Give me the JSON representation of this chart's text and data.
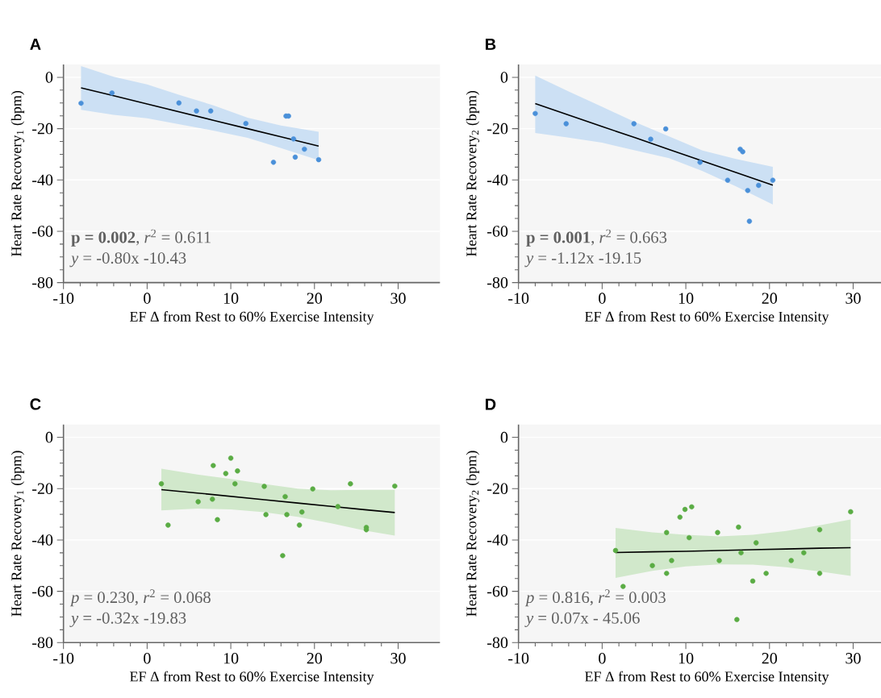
{
  "chart_data": [
    {
      "type": "scatter",
      "title": "A",
      "xlabel": "EF Δ from Rest to 60% Exercise Intensity",
      "ylabel": "Heart Rate Recovery$_{1}$ (bpm)",
      "xlim": [
        -10,
        35
      ],
      "ylim": [
        -80,
        5
      ],
      "xticks": [
        -10,
        0,
        10,
        20,
        30
      ],
      "yticks": [
        -80,
        -60,
        -40,
        -20,
        0
      ],
      "grid": "y",
      "annotations": [
        "**p = 0.002**, *r*$^{2}$ = 0.611",
        "*y* = -0.80x -10.43"
      ],
      "series": [
        {
          "marker": "circle",
          "color": "#4a90d9",
          "x": [
            -7.9,
            -4.2,
            3.8,
            5.9,
            7.6,
            11.8,
            15.1,
            16.6,
            16.9,
            17.5,
            17.7,
            18.8,
            20.5
          ],
          "values": [
            -10.1,
            -6.1,
            -10,
            -13.1,
            -13.1,
            -18,
            -33.1,
            -15.1,
            -15.1,
            -24,
            -31.1,
            -28,
            -32.1
          ]
        },
        {
          "type": "line",
          "marker": "none",
          "color": "#000000",
          "x": [
            -7.9,
            -4,
            0,
            4,
            8,
            12,
            16,
            20.5
          ],
          "values": [
            -4.1,
            -7.2,
            -10.4,
            -13.6,
            -16.8,
            -20.0,
            -23.2,
            -26.8
          ],
          "upper": [
            4.4,
            0.2,
            -2.8,
            -7,
            -11,
            -15.7,
            -18.8,
            -21.2
          ],
          "lower": [
            -12.7,
            -14.6,
            -16,
            -18.4,
            -20.8,
            -23.6,
            -27.6,
            -32.3
          ]
        }
      ]
    },
    {
      "type": "scatter",
      "title": "B",
      "xlabel": "EF Δ from Rest to 60% Exercise Intensity",
      "ylabel": "Heart Rate Recovery$_{2}$ (bpm)",
      "xlim": [
        -10,
        35
      ],
      "ylim": [
        -80,
        5
      ],
      "xticks": [
        -10,
        0,
        10,
        20,
        30
      ],
      "yticks": [
        -80,
        -60,
        -40,
        -20,
        0
      ],
      "grid": "y",
      "annotations": [
        "**p = 0.001**, *r*$^{2}$ = 0.663",
        "*y* = -1.12x -19.15"
      ],
      "series": [
        {
          "marker": "circle",
          "color": "#4a90d9",
          "x": [
            -8.0,
            -4.3,
            3.8,
            5.8,
            7.6,
            11.7,
            15.0,
            16.5,
            16.8,
            17.4,
            17.6,
            18.7,
            20.4
          ],
          "values": [
            -14.1,
            -18.1,
            -18.1,
            -24.1,
            -20.1,
            -33.1,
            -40.1,
            -28,
            -29,
            -44.1,
            -56.1,
            -42.1,
            -40.1
          ]
        },
        {
          "type": "line",
          "marker": "none",
          "color": "#000000",
          "x": [
            -8.0,
            -4,
            0,
            4,
            8,
            12,
            16,
            20.4
          ],
          "values": [
            -10.2,
            -14.7,
            -19.2,
            -23.6,
            -28.1,
            -32.6,
            -37.1,
            -42.0
          ],
          "upper": [
            0.7,
            -5.5,
            -11.5,
            -17.5,
            -23,
            -28.5,
            -31.8,
            -34.9
          ],
          "lower": [
            -21.7,
            -23.5,
            -25.5,
            -28.5,
            -31.5,
            -36.5,
            -42.5,
            -49.6
          ]
        }
      ]
    },
    {
      "type": "scatter",
      "title": "C",
      "xlabel": "EF Δ from Rest to 60% Exercise Intensity",
      "ylabel": "Heart Rate Recovery$_{1}$ (bpm)",
      "xlim": [
        -10,
        35
      ],
      "ylim": [
        -80,
        5
      ],
      "xticks": [
        -10,
        0,
        10,
        20,
        30
      ],
      "yticks": [
        -80,
        -60,
        -40,
        -20,
        0
      ],
      "grid": "y",
      "annotations": [
        "*p* = 0.230, *r*$^{2}$ = 0.068",
        "*y* = -0.32x -19.83"
      ],
      "series": [
        {
          "marker": "circle",
          "color": "#5aac44",
          "x": [
            1.7,
            2.5,
            6.1,
            7.9,
            7.8,
            8.4,
            9.4,
            10.0,
            10.8,
            10.5,
            14.0,
            14.2,
            16.2,
            16.5,
            16.7,
            18.2,
            18.5,
            19.8,
            22.8,
            24.3,
            26.2,
            26.2,
            29.6
          ],
          "values": [
            -18.1,
            -34.2,
            -25.1,
            -11,
            -24.1,
            -32.1,
            -14.1,
            -8.1,
            -13.1,
            -18.1,
            -19.1,
            -30.1,
            -46.1,
            -23.1,
            -30.1,
            -34.2,
            -29.1,
            -20.1,
            -27,
            -18.1,
            -35.1,
            -36.0,
            -19
          ]
        },
        {
          "type": "line",
          "marker": "none",
          "color": "#000000",
          "x": [
            1.7,
            6,
            10,
            14,
            18,
            22,
            26,
            29.6
          ],
          "values": [
            -20.4,
            -21.7,
            -23.0,
            -24.3,
            -25.6,
            -26.9,
            -28.2,
            -29.3
          ],
          "upper": [
            -12.2,
            -14.5,
            -16.2,
            -18.2,
            -20.0,
            -20.6,
            -20.5,
            -20.5
          ],
          "lower": [
            -28.5,
            -27.8,
            -28.1,
            -29.2,
            -31.0,
            -33.5,
            -36.3,
            -38.3
          ]
        }
      ]
    },
    {
      "type": "scatter",
      "title": "D",
      "xlabel": "EF Δ from Rest to 60% Exercise Intensity",
      "ylabel": "Heart Rate Recovery$_{2}$ (bpm)",
      "xlim": [
        -10,
        35
      ],
      "ylim": [
        -80,
        5
      ],
      "xticks": [
        -10,
        0,
        10,
        20,
        30
      ],
      "yticks": [
        -80,
        -60,
        -40,
        -20,
        0
      ],
      "grid": "y",
      "annotations": [
        "*p* = 0.816, *r*$^{2}$ = 0.003",
        "*y* = 0.07x - 45.06"
      ],
      "series": [
        {
          "marker": "circle",
          "color": "#5aac44",
          "x": [
            1.6,
            2.5,
            6.0,
            7.7,
            7.7,
            8.3,
            9.3,
            9.9,
            10.7,
            10.4,
            13.8,
            14.0,
            16.1,
            16.3,
            16.6,
            18.0,
            18.4,
            19.6,
            22.6,
            24.1,
            26.0,
            26.0,
            29.7
          ],
          "values": [
            -44.1,
            -58.1,
            -50,
            -37.1,
            -53,
            -48,
            -31.1,
            -28.1,
            -27.1,
            -39.1,
            -37.1,
            -48,
            -71,
            -35,
            -45,
            -56,
            -41.1,
            -53,
            -48,
            -45,
            -36.0,
            -53,
            -29
          ]
        },
        {
          "type": "line",
          "marker": "none",
          "color": "#000000",
          "x": [
            1.6,
            6,
            10,
            14,
            18,
            22,
            26,
            29.7
          ],
          "values": [
            -44.9,
            -44.6,
            -44.4,
            -44.1,
            -43.8,
            -43.5,
            -43.2,
            -43.0
          ],
          "upper": [
            -35.3,
            -37.0,
            -38.0,
            -38.6,
            -38.0,
            -36.5,
            -34.3,
            -32.0
          ],
          "lower": [
            -54.8,
            -52.0,
            -50.3,
            -49.5,
            -49.6,
            -50.6,
            -52.3,
            -54.0
          ]
        }
      ]
    }
  ]
}
